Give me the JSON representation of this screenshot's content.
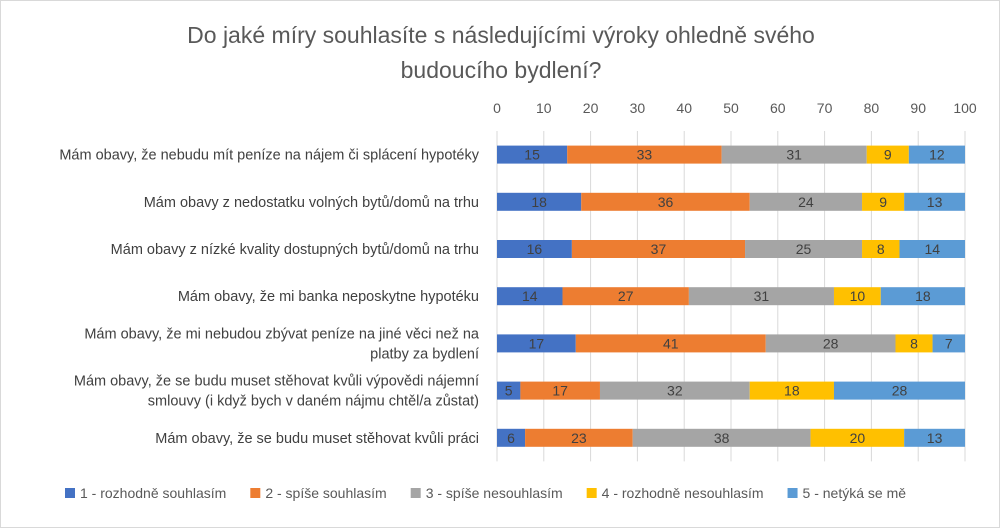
{
  "chart_data": {
    "type": "bar",
    "orientation": "horizontal",
    "stacked": true,
    "title_lines": [
      "Do jaké míry souhlasíte s následujícími výroky ohledně svého",
      "budoucího bydlení?"
    ],
    "categories": [
      [
        "Mám obavy, že nebudu mít peníze na nájem či splácení hypotéky"
      ],
      [
        "Mám obavy z nedostatku volných bytů/domů na trhu"
      ],
      [
        "Mám obavy z nízké kvality dostupných bytů/domů na trhu"
      ],
      [
        "Mám obavy, že mi banka neposkytne hypotéku"
      ],
      [
        "Mám obavy, že mi nebudou zbývat peníze na jiné věci než na",
        "platby za bydlení"
      ],
      [
        "Mám obavy, že se budu muset stěhovat kvůli výpovědi nájemní",
        "smlouvy (i když bych v daném nájmu chtěl/a zůstat)"
      ],
      [
        "Mám obavy, že se budu muset stěhovat kvůli práci"
      ]
    ],
    "series": [
      {
        "name": "1 - rozhodně souhlasím",
        "color": "#4472c4",
        "values": [
          15,
          18,
          16,
          14,
          17,
          5,
          6
        ]
      },
      {
        "name": "2 - spíše souhlasím",
        "color": "#ed7d31",
        "values": [
          33,
          36,
          37,
          27,
          41,
          17,
          23
        ]
      },
      {
        "name": "3 - spíše nesouhlasím",
        "color": "#a5a5a5",
        "values": [
          31,
          24,
          25,
          31,
          28,
          32,
          38
        ]
      },
      {
        "name": "4 - rozhodně nesouhlasím",
        "color": "#ffc000",
        "values": [
          9,
          9,
          8,
          10,
          8,
          18,
          20
        ]
      },
      {
        "name": "5 - netýká se mě",
        "color": "#5b9bd5",
        "values": [
          12,
          13,
          14,
          18,
          7,
          28,
          13
        ]
      }
    ],
    "xlim": [
      0,
      100
    ],
    "x_ticks": [
      "0",
      "10",
      "20",
      "30",
      "40",
      "50",
      "60",
      "70",
      "80",
      "90",
      "100"
    ],
    "grid": true,
    "legend_position": "bottom"
  }
}
